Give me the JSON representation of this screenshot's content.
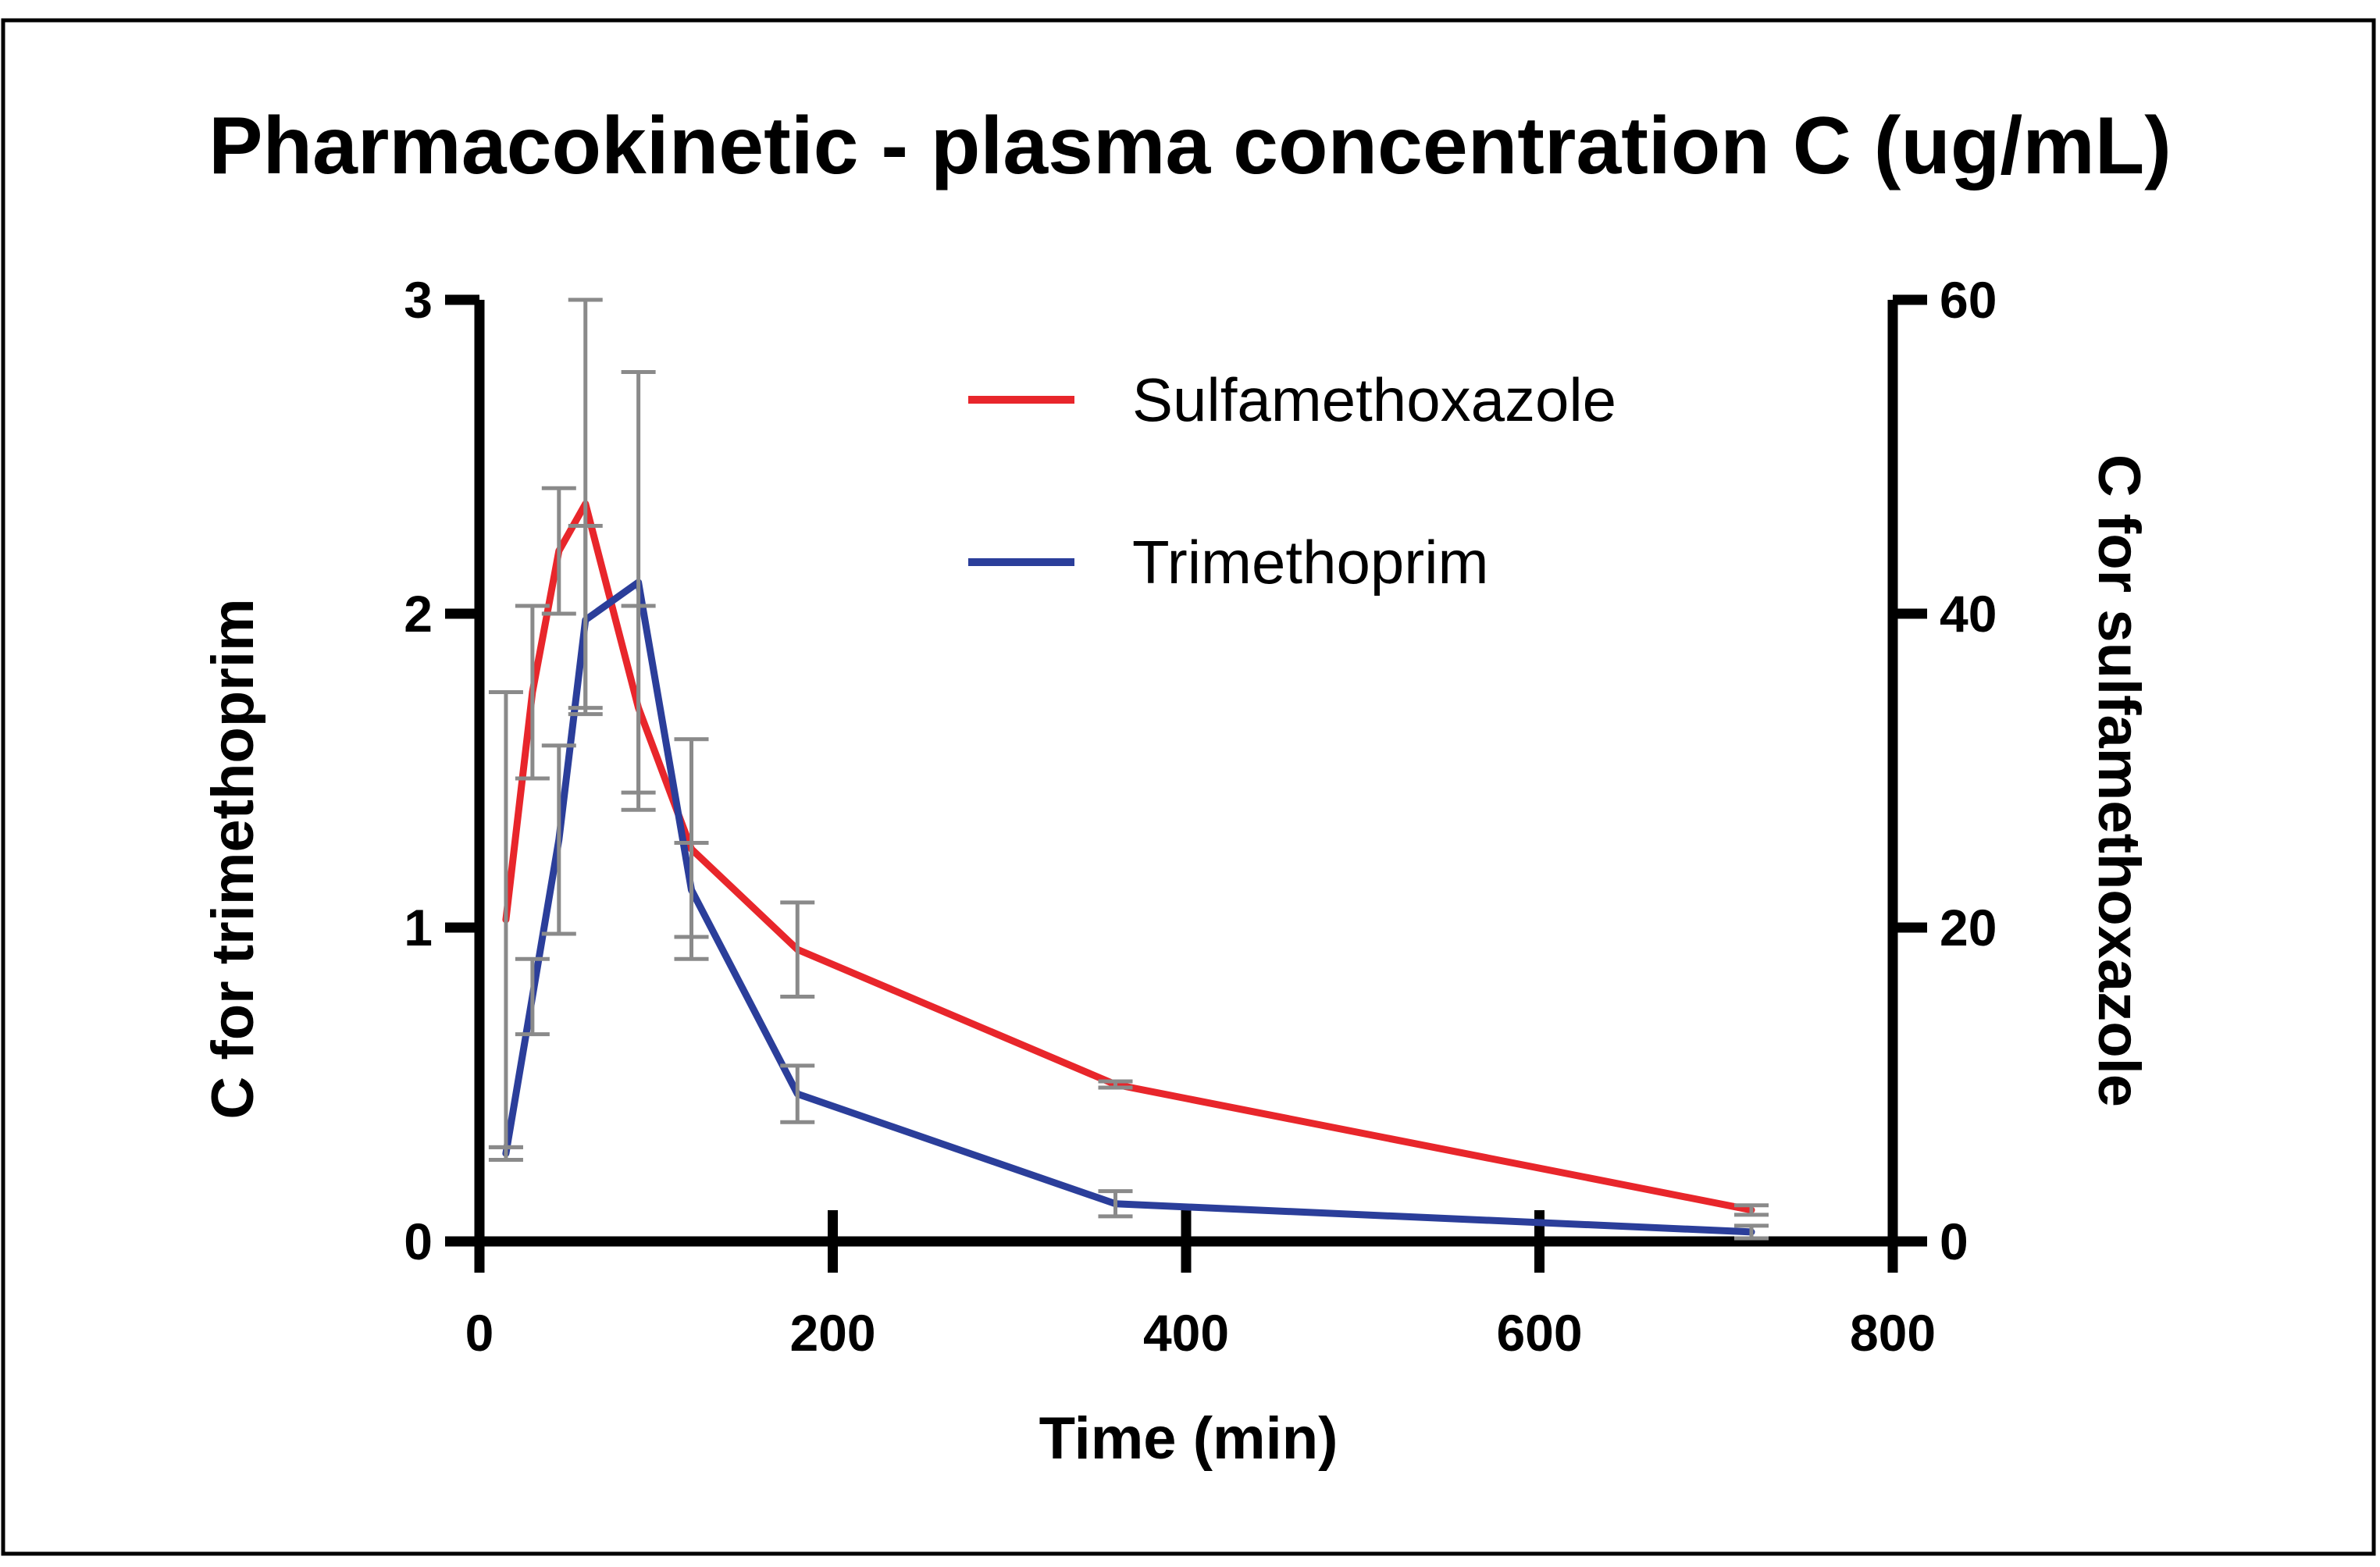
{
  "chart_data": {
    "type": "line",
    "title": "Pharmacokinetic - plasma concentration C (ug/mL)",
    "xlabel": "Time (min)",
    "ylabel_left": "C for trimethoprim",
    "ylabel_right": "C for sulfamethoxazole",
    "xlim": [
      0,
      800
    ],
    "ylim_left": [
      0,
      3
    ],
    "ylim_right": [
      0,
      60
    ],
    "x_ticks": [
      "0",
      "200",
      "400",
      "600",
      "800"
    ],
    "y_left_ticks": [
      "0",
      "1",
      "2",
      "3"
    ],
    "y_right_ticks": [
      "0",
      "20",
      "40",
      "60"
    ],
    "legend_position": "top-right",
    "series": [
      {
        "name": "Sulfamethoxazole",
        "axis": "right",
        "color": "#e8262b",
        "x": [
          15,
          30,
          45,
          60,
          90,
          120,
          180,
          360,
          720
        ],
        "y": [
          20.5,
          35,
          44,
          47,
          34,
          25,
          18.6,
          10,
          2
        ],
        "error": [
          14.5,
          5.5,
          4,
          13,
          6.5,
          7,
          3,
          0.2,
          0.3
        ]
      },
      {
        "name": "Trimethoprim",
        "axis": "left",
        "color": "#2b3e9a",
        "x": [
          15,
          30,
          45,
          60,
          90,
          120,
          180,
          360,
          720
        ],
        "y": [
          0.28,
          0.78,
          1.28,
          1.98,
          2.1,
          1.12,
          0.47,
          0.12,
          0.03
        ],
        "error": [
          0.02,
          0.12,
          0.3,
          0.3,
          0.67,
          0.15,
          0.09,
          0.04,
          0.02
        ]
      }
    ]
  }
}
